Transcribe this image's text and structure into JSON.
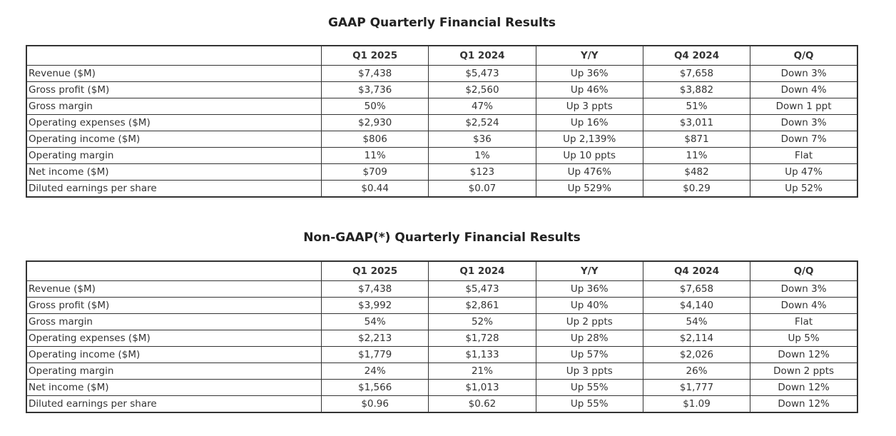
{
  "page": {
    "background_color": "#ffffff",
    "text_color": "#333333",
    "border_color": "#333333",
    "title_color": "#222222"
  },
  "tables": [
    {
      "title": "GAAP Quarterly Financial Results",
      "columns": [
        "",
        "Q1 2025",
        "Q1 2024",
        "Y/Y",
        "Q4 2024",
        "Q/Q"
      ],
      "rows": [
        [
          "Revenue ($M)",
          "$7,438",
          "$5,473",
          "Up 36%",
          "$7,658",
          "Down 3%"
        ],
        [
          "Gross profit ($M)",
          "$3,736",
          "$2,560",
          "Up 46%",
          "$3,882",
          "Down 4%"
        ],
        [
          "Gross margin",
          "50%",
          "47%",
          "Up 3 ppts",
          "51%",
          "Down 1 ppt"
        ],
        [
          "Operating expenses ($M)",
          "$2,930",
          "$2,524",
          "Up 16%",
          "$3,011",
          "Down 3%"
        ],
        [
          "Operating income ($M)",
          "$806",
          "$36",
          "Up 2,139%",
          "$871",
          "Down 7%"
        ],
        [
          "Operating margin",
          "11%",
          "1%",
          "Up 10 ppts",
          "11%",
          "Flat"
        ],
        [
          "Net income ($M)",
          "$709",
          "$123",
          "Up 476%",
          "$482",
          "Up 47%"
        ],
        [
          "Diluted earnings per share",
          "$0.44",
          "$0.07",
          "Up 529%",
          "$0.29",
          "Up 52%"
        ]
      ]
    },
    {
      "title": "Non-GAAP(*) Quarterly Financial Results",
      "columns": [
        "",
        "Q1 2025",
        "Q1 2024",
        "Y/Y",
        "Q4 2024",
        "Q/Q"
      ],
      "rows": [
        [
          "Revenue ($M)",
          "$7,438",
          "$5,473",
          "Up 36%",
          "$7,658",
          "Down 3%"
        ],
        [
          "Gross profit ($M)",
          "$3,992",
          "$2,861",
          "Up 40%",
          "$4,140",
          "Down 4%"
        ],
        [
          "Gross margin",
          "54%",
          "52%",
          "Up 2 ppts",
          "54%",
          "Flat"
        ],
        [
          "Operating expenses ($M)",
          "$2,213",
          "$1,728",
          "Up 28%",
          "$2,114",
          "Up 5%"
        ],
        [
          "Operating income ($M)",
          "$1,779",
          "$1,133",
          "Up 57%",
          "$2,026",
          "Down 12%"
        ],
        [
          "Operating margin",
          "24%",
          "21%",
          "Up 3 ppts",
          "26%",
          "Down 2 ppts"
        ],
        [
          "Net income ($M)",
          "$1,566",
          "$1,013",
          "Up 55%",
          "$1,777",
          "Down 12%"
        ],
        [
          "Diluted earnings per share",
          "$0.96",
          "$0.62",
          "Up 55%",
          "$1.09",
          "Down 12%"
        ]
      ]
    }
  ]
}
